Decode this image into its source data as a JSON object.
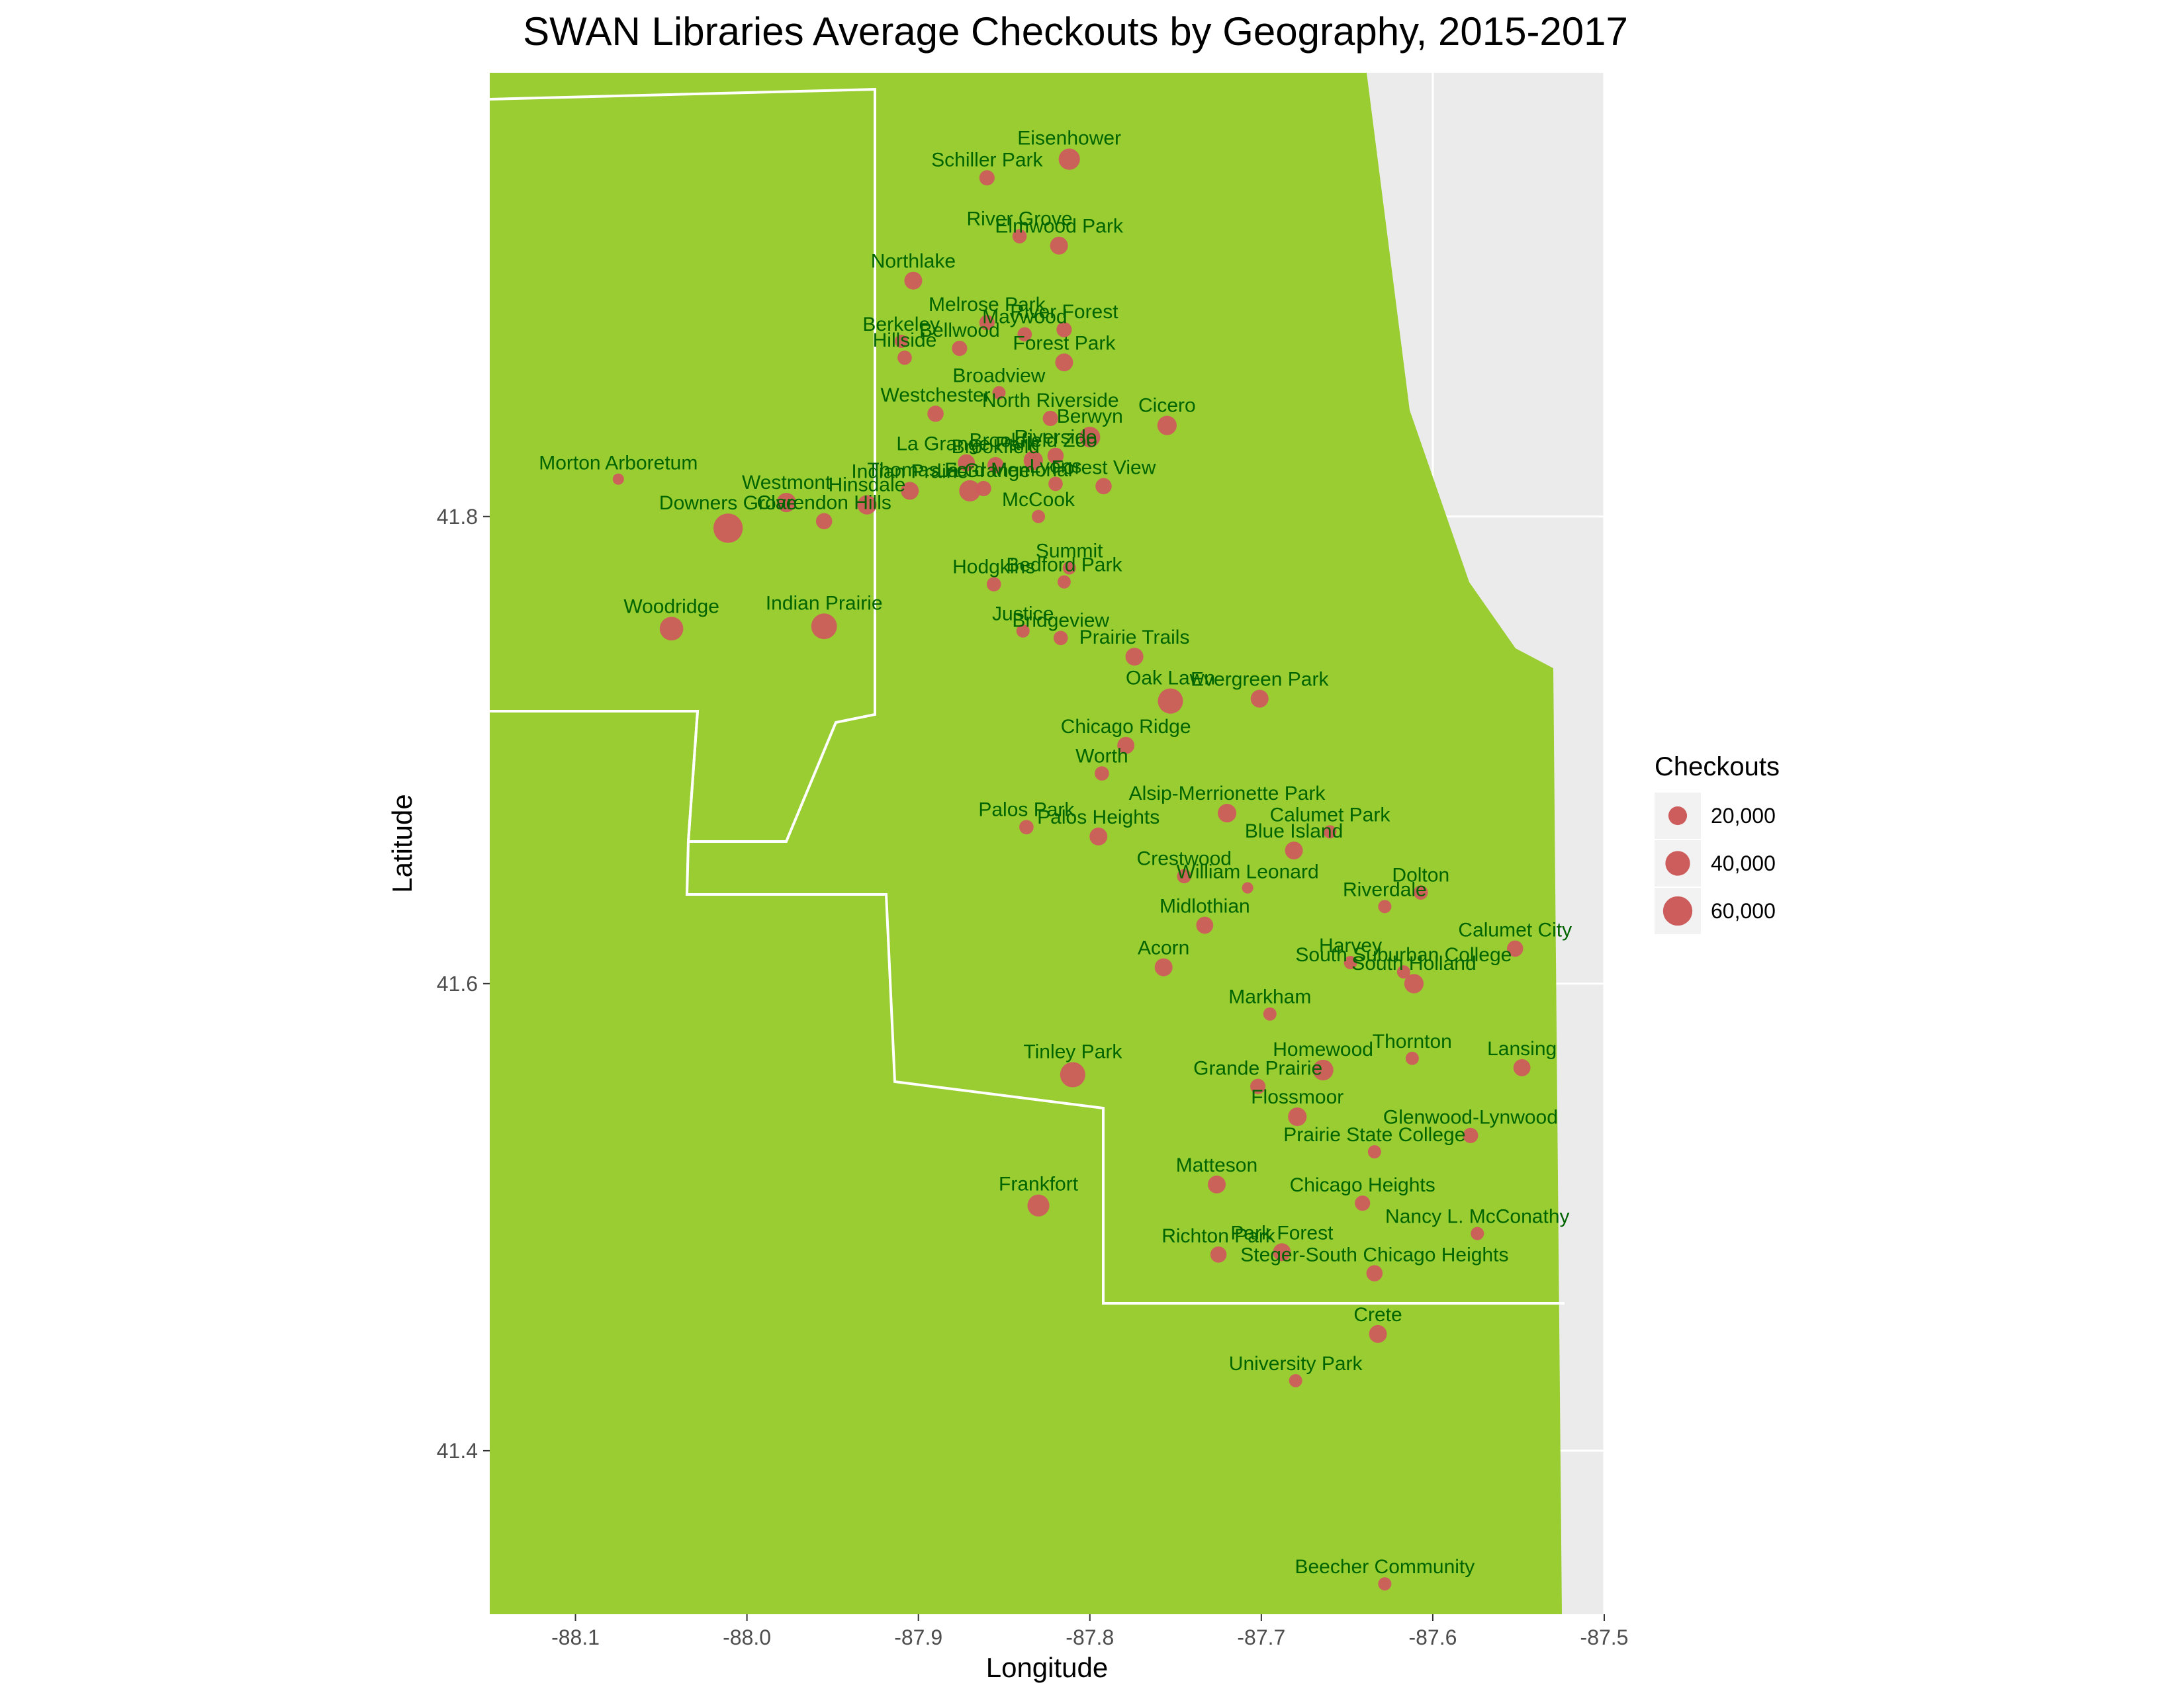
{
  "chart_data": {
    "type": "scatter",
    "title": "SWAN Libraries Average Checkouts by Geography, 2015-2017",
    "xlabel": "Longitude",
    "ylabel": "Latitude",
    "xlim": [
      -88.15,
      -87.5
    ],
    "ylim": [
      41.33,
      41.99
    ],
    "x_ticks": [
      -88.1,
      -88.0,
      -87.9,
      -87.8,
      -87.7,
      -87.6,
      -87.5
    ],
    "x_tick_labels": [
      "-88.1",
      "-88.0",
      "-87.9",
      "-87.8",
      "-87.7",
      "-87.6",
      "-87.5"
    ],
    "y_ticks": [
      41.4,
      41.6,
      41.8
    ],
    "y_tick_labels": [
      "41.4",
      "41.6",
      "41.8"
    ],
    "grid": true,
    "panel_background": "#ebebeb",
    "map_fill": "#9acd32",
    "point_color": "#cd5c5c",
    "label_color": "#006400",
    "legend": {
      "title": "Checkouts",
      "position": "right",
      "entries": [
        {
          "value": 20000,
          "label": "20,000"
        },
        {
          "value": 40000,
          "label": "40,000"
        },
        {
          "value": 60000,
          "label": "60,000"
        }
      ]
    },
    "points": [
      {
        "name": "Eisenhower",
        "x": -87.812,
        "y": 41.953,
        "value": 28000
      },
      {
        "name": "Schiller Park",
        "x": -87.86,
        "y": 41.945,
        "value": 12000
      },
      {
        "name": "River Grove",
        "x": -87.841,
        "y": 41.92,
        "value": 10000
      },
      {
        "name": "Elmwood Park",
        "x": -87.818,
        "y": 41.916,
        "value": 18000
      },
      {
        "name": "Northlake",
        "x": -87.903,
        "y": 41.901,
        "value": 18000
      },
      {
        "name": "Melrose Park",
        "x": -87.86,
        "y": 41.883,
        "value": 12000
      },
      {
        "name": "River Forest",
        "x": -87.815,
        "y": 41.88,
        "value": 12000
      },
      {
        "name": "Maywood",
        "x": -87.838,
        "y": 41.878,
        "value": 10000
      },
      {
        "name": "Berkeley",
        "x": -87.91,
        "y": 41.875,
        "value": 8000
      },
      {
        "name": "Hillside",
        "x": -87.908,
        "y": 41.868,
        "value": 10000
      },
      {
        "name": "Bellwood",
        "x": -87.876,
        "y": 41.872,
        "value": 12000
      },
      {
        "name": "Forest Park",
        "x": -87.815,
        "y": 41.866,
        "value": 18000
      },
      {
        "name": "Broadview",
        "x": -87.853,
        "y": 41.853,
        "value": 8000
      },
      {
        "name": "Westchester",
        "x": -87.89,
        "y": 41.844,
        "value": 14000
      },
      {
        "name": "Cicero",
        "x": -87.755,
        "y": 41.839,
        "value": 22000
      },
      {
        "name": "North Riverside",
        "x": -87.823,
        "y": 41.842,
        "value": 12000
      },
      {
        "name": "Berwyn",
        "x": -87.8,
        "y": 41.834,
        "value": 26000
      },
      {
        "name": "Brookfield Zoo",
        "x": -87.833,
        "y": 41.824,
        "value": 22000
      },
      {
        "name": "Riverside",
        "x": -87.82,
        "y": 41.826,
        "value": 14000
      },
      {
        "name": "La Grange Park",
        "x": -87.872,
        "y": 41.823,
        "value": 16000
      },
      {
        "name": "Brookfield",
        "x": -87.855,
        "y": 41.822,
        "value": 14000
      },
      {
        "name": "Thomas Ford Memorial",
        "x": -87.87,
        "y": 41.811,
        "value": 28000
      },
      {
        "name": "Indian Prairie",
        "x": -87.905,
        "y": 41.811,
        "value": 18000
      },
      {
        "name": "La Grange",
        "x": -87.862,
        "y": 41.812,
        "value": 12000
      },
      {
        "name": "Lyons",
        "x": -87.82,
        "y": 41.814,
        "value": 10000
      },
      {
        "name": "Forest View",
        "x": -87.792,
        "y": 41.813,
        "value": 14000
      },
      {
        "name": "Morton Arboretum",
        "x": -88.075,
        "y": 41.816,
        "value": 5000
      },
      {
        "name": "Westmont",
        "x": -87.977,
        "y": 41.806,
        "value": 22000
      },
      {
        "name": "Hinsdale",
        "x": -87.93,
        "y": 41.805,
        "value": 22000
      },
      {
        "name": "Clarendon Hills",
        "x": -87.955,
        "y": 41.798,
        "value": 14000
      },
      {
        "name": "McCook",
        "x": -87.83,
        "y": 41.8,
        "value": 8000
      },
      {
        "name": "Downers Grove",
        "x": -88.011,
        "y": 41.795,
        "value": 60000
      },
      {
        "name": "Summit",
        "x": -87.812,
        "y": 41.778,
        "value": 8000
      },
      {
        "name": "Hodgkins",
        "x": -87.856,
        "y": 41.771,
        "value": 10000
      },
      {
        "name": "Bedford Park",
        "x": -87.815,
        "y": 41.772,
        "value": 8000
      },
      {
        "name": "Woodridge",
        "x": -88.044,
        "y": 41.752,
        "value": 36000
      },
      {
        "name": "Indian Prairie",
        "x": -87.955,
        "y": 41.753,
        "value": 44000
      },
      {
        "name": "Justice",
        "x": -87.839,
        "y": 41.751,
        "value": 8000
      },
      {
        "name": "Bridgeview",
        "x": -87.817,
        "y": 41.748,
        "value": 10000
      },
      {
        "name": "Prairie Trails",
        "x": -87.774,
        "y": 41.74,
        "value": 18000
      },
      {
        "name": "Oak Lawn",
        "x": -87.753,
        "y": 41.721,
        "value": 42000
      },
      {
        "name": "Evergreen Park",
        "x": -87.701,
        "y": 41.722,
        "value": 18000
      },
      {
        "name": "Chicago Ridge",
        "x": -87.779,
        "y": 41.702,
        "value": 16000
      },
      {
        "name": "Worth",
        "x": -87.793,
        "y": 41.69,
        "value": 10000
      },
      {
        "name": "Alsip-Merrionette Park",
        "x": -87.72,
        "y": 41.673,
        "value": 20000
      },
      {
        "name": "Palos Park",
        "x": -87.837,
        "y": 41.667,
        "value": 10000
      },
      {
        "name": "Palos Heights",
        "x": -87.795,
        "y": 41.663,
        "value": 18000
      },
      {
        "name": "Calumet Park",
        "x": -87.66,
        "y": 41.665,
        "value": 8000
      },
      {
        "name": "Blue Island",
        "x": -87.681,
        "y": 41.657,
        "value": 18000
      },
      {
        "name": "Crestwood",
        "x": -87.745,
        "y": 41.646,
        "value": 10000
      },
      {
        "name": "William Leonard",
        "x": -87.708,
        "y": 41.641,
        "value": 5000
      },
      {
        "name": "Dolton",
        "x": -87.607,
        "y": 41.639,
        "value": 10000
      },
      {
        "name": "Riverdale",
        "x": -87.628,
        "y": 41.633,
        "value": 8000
      },
      {
        "name": "Midlothian",
        "x": -87.733,
        "y": 41.625,
        "value": 16000
      },
      {
        "name": "Calumet City",
        "x": -87.552,
        "y": 41.615,
        "value": 14000
      },
      {
        "name": "Harvey",
        "x": -87.648,
        "y": 41.609,
        "value": 8000
      },
      {
        "name": "Acorn",
        "x": -87.757,
        "y": 41.607,
        "value": 18000
      },
      {
        "name": "South Suburban College",
        "x": -87.617,
        "y": 41.605,
        "value": 8000
      },
      {
        "name": "South Holland",
        "x": -87.611,
        "y": 41.6,
        "value": 22000
      },
      {
        "name": "Markham",
        "x": -87.695,
        "y": 41.587,
        "value": 8000
      },
      {
        "name": "Thornton",
        "x": -87.612,
        "y": 41.568,
        "value": 8000
      },
      {
        "name": "Lansing",
        "x": -87.548,
        "y": 41.564,
        "value": 16000
      },
      {
        "name": "Tinley Park",
        "x": -87.81,
        "y": 41.561,
        "value": 42000
      },
      {
        "name": "Homewood",
        "x": -87.664,
        "y": 41.563,
        "value": 26000
      },
      {
        "name": "Grande Prairie",
        "x": -87.702,
        "y": 41.556,
        "value": 12000
      },
      {
        "name": "Flossmoor",
        "x": -87.679,
        "y": 41.543,
        "value": 20000
      },
      {
        "name": "Glenwood-Lynwood",
        "x": -87.578,
        "y": 41.535,
        "value": 12000
      },
      {
        "name": "Prairie State College",
        "x": -87.634,
        "y": 41.528,
        "value": 8000
      },
      {
        "name": "Matteson",
        "x": -87.726,
        "y": 41.514,
        "value": 18000
      },
      {
        "name": "Frankfort",
        "x": -87.83,
        "y": 41.505,
        "value": 30000
      },
      {
        "name": "Chicago Heights",
        "x": -87.641,
        "y": 41.506,
        "value": 12000
      },
      {
        "name": "Nancy L. McConathy",
        "x": -87.574,
        "y": 41.493,
        "value": 8000
      },
      {
        "name": "Richton Park",
        "x": -87.725,
        "y": 41.484,
        "value": 14000
      },
      {
        "name": "Park Forest",
        "x": -87.688,
        "y": 41.485,
        "value": 18000
      },
      {
        "name": "Steger-South Chicago Heights",
        "x": -87.634,
        "y": 41.476,
        "value": 14000
      },
      {
        "name": "Crete",
        "x": -87.632,
        "y": 41.45,
        "value": 18000
      },
      {
        "name": "University Park",
        "x": -87.68,
        "y": 41.43,
        "value": 8000
      },
      {
        "name": "Beecher Community",
        "x": -87.628,
        "y": 41.343,
        "value": 8000
      }
    ]
  }
}
